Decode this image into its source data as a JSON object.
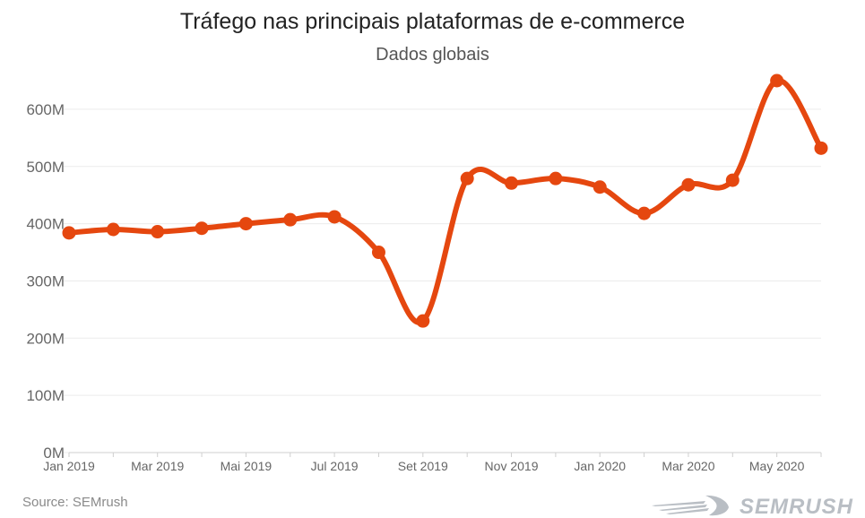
{
  "chart_data": {
    "type": "line",
    "title": "Tráfego nas principais plataformas de e-commerce",
    "subtitle": "Dados globais",
    "xlabel": "",
    "ylabel": "",
    "x": [
      "Jan 2019",
      "Feb 2019",
      "Mar 2019",
      "Apr 2019",
      "Mai 2019",
      "Jun 2019",
      "Jul 2019",
      "Aug 2019",
      "Set 2019",
      "Oct 2019",
      "Nov 2019",
      "Dec 2019",
      "Jan 2020",
      "Feb 2020",
      "Mar 2020",
      "Apr 2020",
      "May 2020",
      "Jun 2020"
    ],
    "x_tick_labels": [
      "Jan 2019",
      "",
      "Mar 2019",
      "",
      "Mai 2019",
      "",
      "Jul 2019",
      "",
      "Set 2019",
      "",
      "Nov 2019",
      "",
      "Jan 2020",
      "",
      "Mar 2020",
      "",
      "May 2020",
      ""
    ],
    "series": [
      {
        "name": "",
        "values": [
          384,
          390,
          386,
          392,
          400,
          407,
          412,
          350,
          230,
          479,
          471,
          479,
          464,
          418,
          468,
          476,
          650,
          532
        ]
      }
    ],
    "y_ticks": [
      0,
      100,
      200,
      300,
      400,
      500,
      600
    ],
    "y_tick_labels": [
      "0M",
      "100M",
      "200M",
      "300M",
      "400M",
      "500M",
      "600M"
    ],
    "ylim": [
      0,
      650
    ],
    "grid": true,
    "legend": "none",
    "line_color": "#e5470f"
  },
  "footer": {
    "source": "Source: SEMrush",
    "logo_text": "SEMRUSH"
  }
}
